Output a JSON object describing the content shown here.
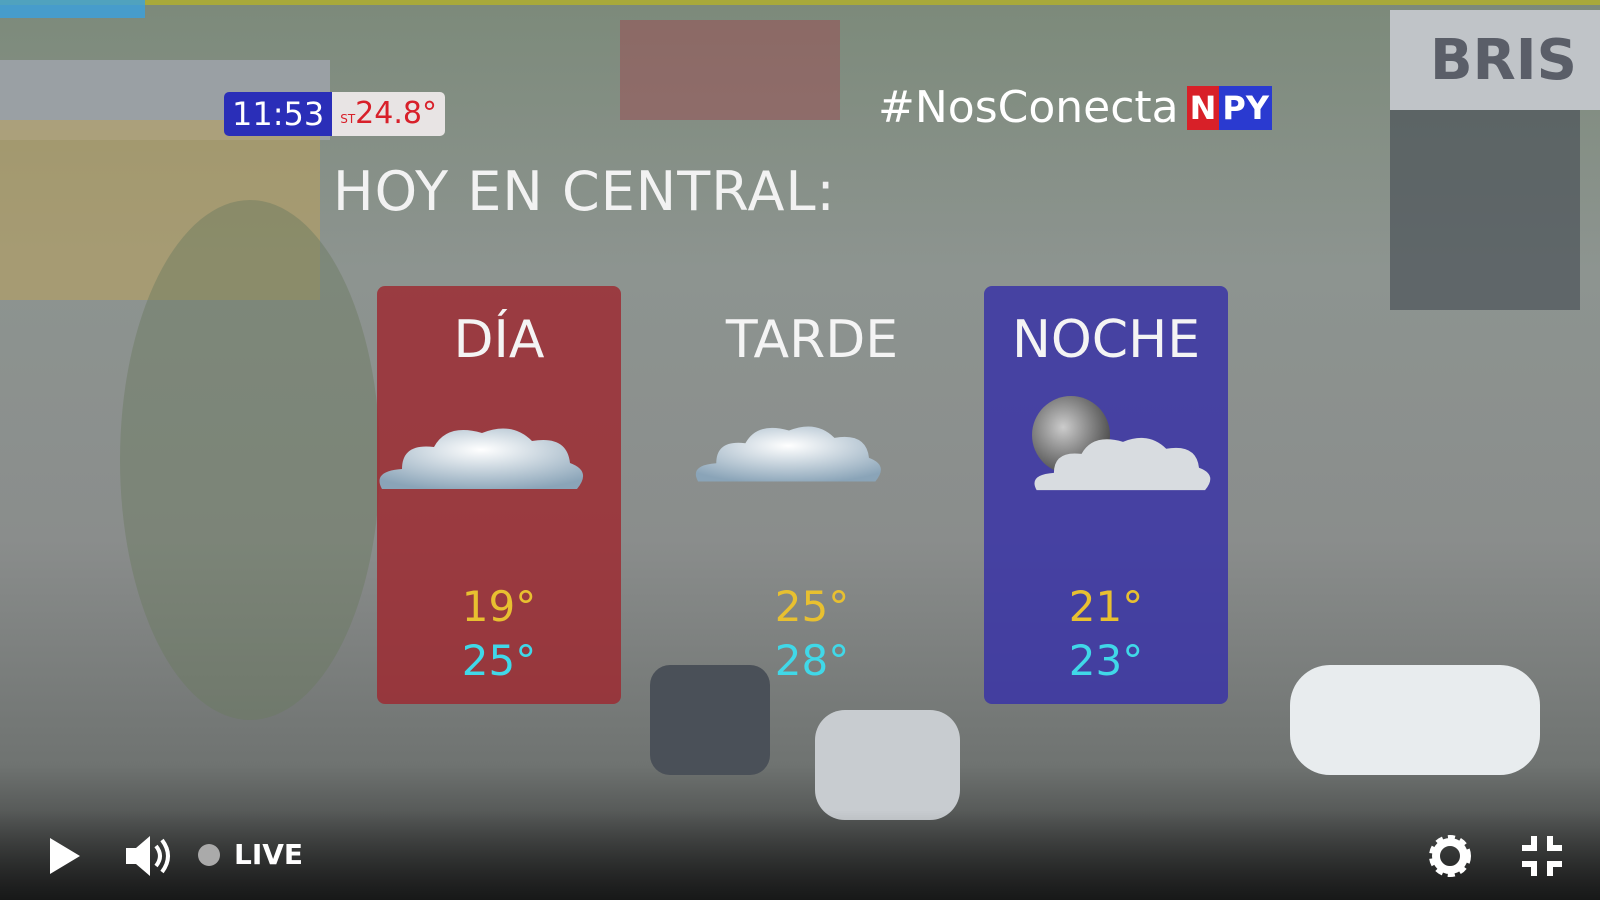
{
  "overlay": {
    "clock": "11:53",
    "temp_prefix": "ST",
    "temp": "24.8°",
    "hashtag": "#NosConecta",
    "logo": {
      "n": "N",
      "py": "PY"
    },
    "title": "HOY EN CENTRAL:",
    "periods": [
      {
        "label": "DÍA",
        "min": "19°",
        "max": "25°",
        "icon": "cloud-icon",
        "color": "#9e2830"
      },
      {
        "label": "TARDE",
        "min": "25°",
        "max": "28°",
        "icon": "cloud-icon",
        "color": "transparent"
      },
      {
        "label": "NOCHE",
        "min": "21°",
        "max": "23°",
        "icon": "moon-cloud-icon",
        "color": "#3a34a6"
      }
    ]
  },
  "background_sign": "BRIS",
  "controls": {
    "live_label": "LIVE",
    "play": "play-icon",
    "volume": "volume-icon",
    "settings": "gear-icon",
    "exit_fullscreen": "minimize-icon"
  }
}
